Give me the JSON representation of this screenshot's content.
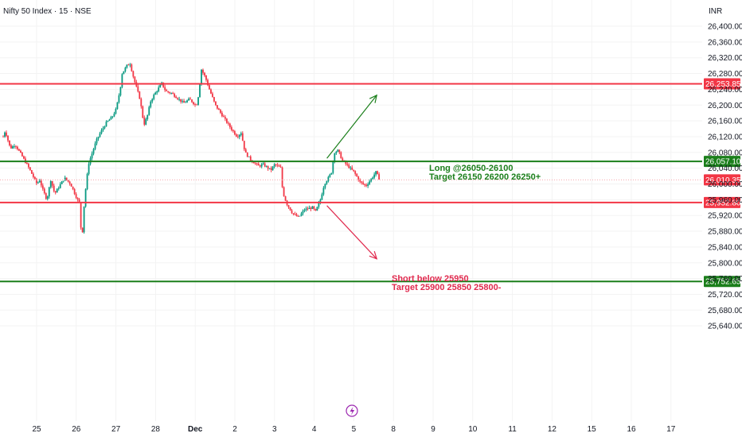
{
  "header": {
    "title": "Nifty 50 Index · 15 · NSE",
    "currency": "INR"
  },
  "colors": {
    "up": "#089981",
    "down": "#f23645",
    "resistance_line": "#f23645",
    "support_line": "#1b7f1b",
    "long_arrow": "#1b7f1b",
    "short_arrow": "#e0294d",
    "current_price_line": "#f7a6ad",
    "event_icon": "#9c27b0"
  },
  "chart_data": {
    "type": "candlestick",
    "timeframe": "15",
    "x_ticks": [
      "25",
      "26",
      "27",
      "28",
      "Dec",
      "2",
      "3",
      "4",
      "5",
      "8",
      "9",
      "10",
      "11",
      "12",
      "15",
      "16",
      "17"
    ],
    "y_ticks": [
      "26,400.00",
      "26,360.00",
      "26,320.00",
      "26,280.00",
      "26,240.00",
      "26,200.00",
      "26,160.00",
      "26,120.00",
      "26,080.00",
      "26,040.00",
      "26,000.00",
      "25,960.00",
      "25,920.00",
      "25,880.00",
      "25,840.00",
      "25,800.00",
      "25,760.00",
      "25,720.00",
      "25,680.00",
      "25,640.00"
    ],
    "ylim": [
      25640,
      26420
    ],
    "last_price": "26,010.35",
    "last_price_value": 26010.35,
    "levels": [
      {
        "label": "26,253.85",
        "value": 26253.85,
        "role": "resistance",
        "color": "#f23645"
      },
      {
        "label": "26,057.10",
        "value": 26057.1,
        "role": "support",
        "color": "#1b7f1b"
      },
      {
        "label": "25,952.80",
        "value": 25952.8,
        "role": "resistance",
        "color": "#f23645"
      },
      {
        "label": "25,752.65",
        "value": 25752.65,
        "role": "support",
        "color": "#1b7f1b"
      }
    ],
    "annotations": [
      {
        "lines": [
          "Long @26050-26100",
          "Target 26150 26200 26250+"
        ],
        "color": "#1b7f1b"
      },
      {
        "lines": [
          "Short below 25950",
          "Target 25900 25850 25800-"
        ],
        "color": "#e0294d"
      }
    ],
    "arrows": [
      {
        "from": {
          "day": "4",
          "price": 26065
        },
        "to": {
          "day": "6",
          "price": 26225
        },
        "color": "#1b7f1b"
      },
      {
        "from": {
          "day": "4",
          "price": 25945
        },
        "to": {
          "day": "6",
          "price": 25810
        },
        "color": "#e0294d"
      }
    ],
    "session_closes": [
      {
        "day": "24",
        "close": 26060
      },
      {
        "day": "25",
        "close": 25970
      },
      {
        "day": "26",
        "close": 26205
      },
      {
        "day": "27",
        "close": 26215
      },
      {
        "day": "28",
        "close": 26200
      },
      {
        "day": "Dec",
        "close": 26175
      },
      {
        "day": "2",
        "close": 26030
      },
      {
        "day": "3",
        "close": 25935
      },
      {
        "day": "4",
        "close": 26025
      }
    ],
    "path": [
      [
        26120,
        0.0
      ],
      [
        26135,
        0.05
      ],
      [
        26090,
        0.18
      ],
      [
        26100,
        0.3
      ],
      [
        26075,
        0.45
      ],
      [
        26040,
        0.65
      ],
      [
        26000,
        0.85
      ],
      [
        26010,
        0.92
      ],
      [
        25985,
        1.0
      ],
      [
        25960,
        1.1
      ],
      [
        26010,
        1.2
      ],
      [
        25975,
        1.3
      ],
      [
        26000,
        1.45
      ],
      [
        26015,
        1.55
      ],
      [
        26000,
        1.7
      ],
      [
        25965,
        1.85
      ],
      [
        25950,
        1.93
      ],
      [
        25870,
        1.97
      ],
      [
        25880,
        2.0
      ],
      [
        25960,
        2.05
      ],
      [
        26050,
        2.15
      ],
      [
        26110,
        2.35
      ],
      [
        26130,
        2.45
      ],
      [
        26155,
        2.6
      ],
      [
        26170,
        2.75
      ],
      [
        26190,
        2.85
      ],
      [
        26240,
        2.95
      ],
      [
        26280,
        3.0
      ],
      [
        26300,
        3.12
      ],
      [
        26305,
        3.2
      ],
      [
        26265,
        3.3
      ],
      [
        26215,
        3.45
      ],
      [
        26150,
        3.55
      ],
      [
        26170,
        3.63
      ],
      [
        26210,
        3.72
      ],
      [
        26225,
        3.8
      ],
      [
        26240,
        3.9
      ],
      [
        26255,
        4.0
      ],
      [
        26235,
        4.1
      ],
      [
        26230,
        4.25
      ],
      [
        26205,
        4.55
      ],
      [
        26215,
        4.7
      ],
      [
        26200,
        4.85
      ],
      [
        26205,
        4.9
      ],
      [
        26290,
        5.0
      ],
      [
        26270,
        5.1
      ],
      [
        26240,
        5.2
      ],
      [
        26200,
        5.35
      ],
      [
        26170,
        5.55
      ],
      [
        26140,
        5.75
      ],
      [
        26120,
        5.9
      ],
      [
        26130,
        6.0
      ],
      [
        26080,
        6.1
      ],
      [
        26060,
        6.25
      ],
      [
        26045,
        6.45
      ],
      [
        26050,
        6.55
      ],
      [
        26035,
        6.75
      ],
      [
        26050,
        6.85
      ],
      [
        26040,
        7.0
      ],
      [
        25980,
        7.05
      ],
      [
        25950,
        7.15
      ],
      [
        25925,
        7.3
      ],
      [
        25915,
        7.45
      ],
      [
        25935,
        7.6
      ],
      [
        25940,
        7.8
      ],
      [
        25930,
        7.88
      ],
      [
        25960,
        8.0
      ],
      [
        26000,
        8.1
      ],
      [
        26015,
        8.2
      ],
      [
        26030,
        8.28
      ],
      [
        26080,
        8.35
      ],
      [
        26085,
        8.45
      ],
      [
        26060,
        8.55
      ],
      [
        26045,
        8.7
      ],
      [
        26030,
        8.85
      ],
      [
        26005,
        9.0
      ],
      [
        25995,
        9.15
      ],
      [
        26015,
        9.3
      ],
      [
        26030,
        9.4
      ],
      [
        26010,
        9.5
      ]
    ]
  },
  "event_icon": "lightning-icon"
}
